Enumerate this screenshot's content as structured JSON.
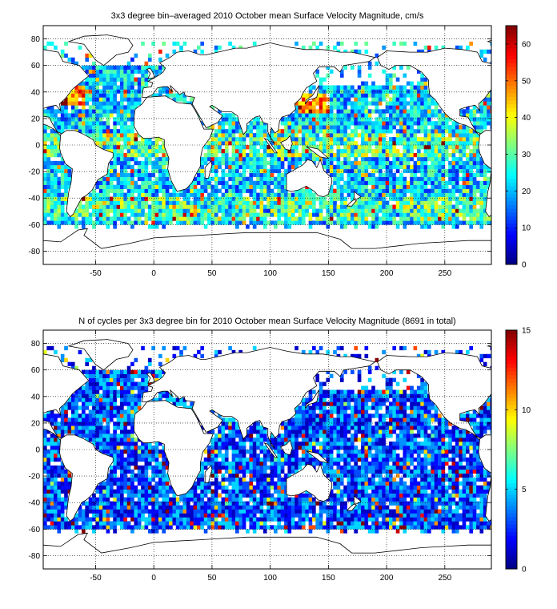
{
  "chart_data": [
    {
      "type": "heatmap",
      "title": "3x3 degree bin–averaged 2010 October mean Surface Velocity Magnitude, cm/s",
      "xlabel": "",
      "ylabel": "",
      "xlim": [
        -95,
        290
      ],
      "ylim": [
        -90,
        90
      ],
      "x_ticks": [
        -50,
        0,
        50,
        100,
        150,
        200,
        250
      ],
      "y_ticks": [
        80,
        60,
        40,
        20,
        0,
        -20,
        -40,
        -60,
        -80
      ],
      "grid": true,
      "grid_style": "dotted",
      "bin_size_deg": 3,
      "colorbar": {
        "min": 0,
        "max": 65,
        "ticks": [
          0,
          10,
          20,
          30,
          40,
          50,
          60
        ],
        "colormap": "jet"
      },
      "field": "velocity"
    },
    {
      "type": "heatmap",
      "title": "N of cycles per 3x3 degree bin for 2010 October mean Surface Velocity Magnitude (8691 in total)",
      "xlabel": "",
      "ylabel": "",
      "xlim": [
        -95,
        290
      ],
      "ylim": [
        -90,
        90
      ],
      "x_ticks": [
        -50,
        0,
        50,
        100,
        150,
        200,
        250
      ],
      "y_ticks": [
        80,
        60,
        40,
        20,
        0,
        -20,
        -40,
        -60,
        -80
      ],
      "grid": true,
      "grid_style": "dotted",
      "bin_size_deg": 3,
      "colorbar": {
        "min": 0,
        "max": 15,
        "ticks": [
          0,
          5,
          10,
          15
        ],
        "colormap": "jet"
      },
      "field": "count"
    }
  ]
}
